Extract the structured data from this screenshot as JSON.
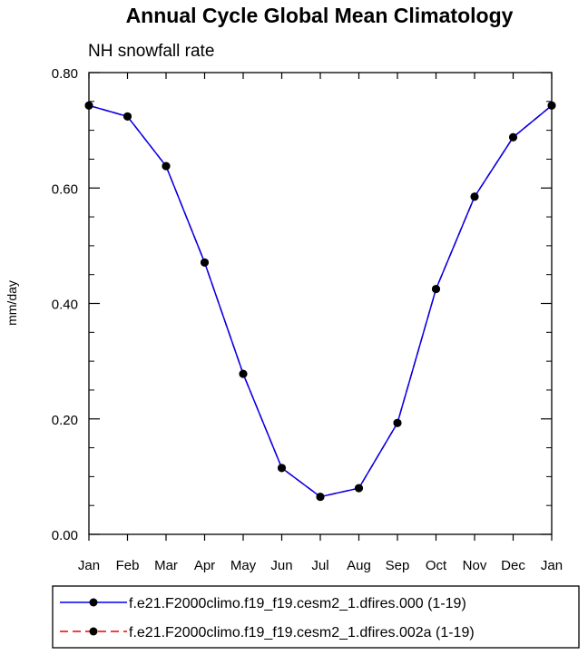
{
  "chart_data": {
    "type": "line",
    "title": "Annual Cycle Global Mean Climatology",
    "subtitle": "NH snowfall rate",
    "xlabel": "",
    "ylabel": "mm/day",
    "categories": [
      "Jan",
      "Feb",
      "Mar",
      "Apr",
      "May",
      "Jun",
      "Jul",
      "Aug",
      "Sep",
      "Oct",
      "Nov",
      "Dec",
      "Jan"
    ],
    "ylim": [
      0.0,
      0.8
    ],
    "yticks": [
      0.0,
      0.2,
      0.4,
      0.6,
      0.8
    ],
    "ytick_labels": [
      "0.00",
      "0.20",
      "0.40",
      "0.60",
      "0.80"
    ],
    "grid": false,
    "legend_position": "bottom",
    "series": [
      {
        "name": "f.e21.F2000climo.f19_f19.cesm2_1.dfires.000 (1-19)",
        "color": "#0000ee",
        "line_style": "solid",
        "marker": "circle",
        "values": [
          0.743,
          0.724,
          0.638,
          0.471,
          0.278,
          0.115,
          0.065,
          0.08,
          0.193,
          0.425,
          0.585,
          0.688,
          0.743
        ]
      },
      {
        "name": "f.e21.F2000climo.f19_f19.cesm2_1.dfires.002a (1-19)",
        "color": "#ee0000",
        "line_style": "dashed",
        "marker": "circle",
        "values": [
          0.743,
          0.724,
          0.638,
          0.471,
          0.278,
          0.115,
          0.065,
          0.08,
          0.193,
          0.425,
          0.585,
          0.688,
          0.743
        ]
      }
    ]
  }
}
